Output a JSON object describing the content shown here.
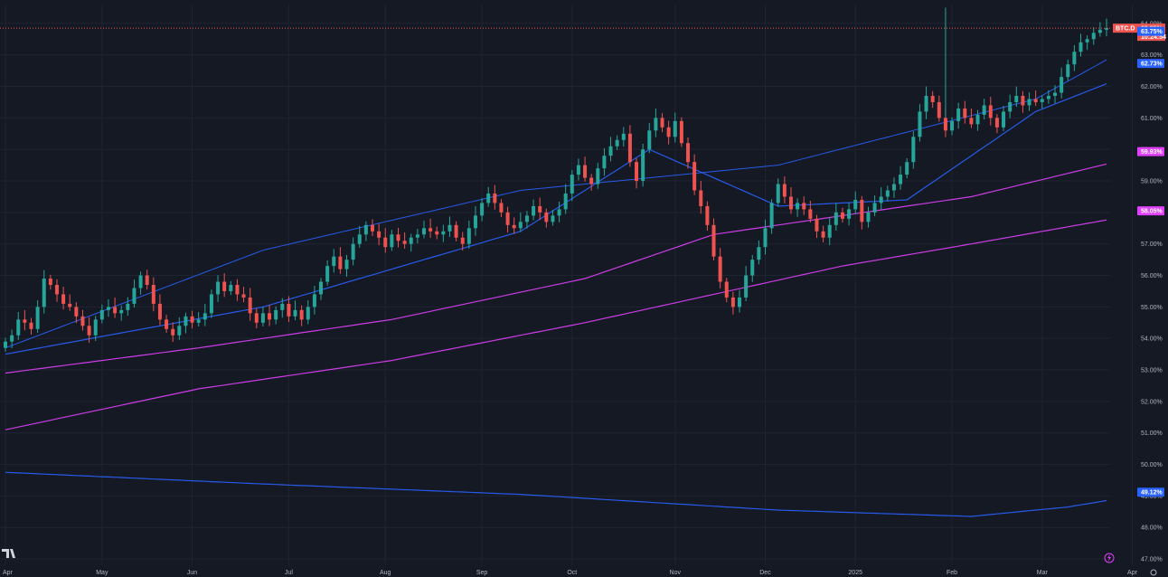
{
  "colors": {
    "background": "#151924",
    "grid": "#1f2431",
    "axis_text": "#b2b5be",
    "candle_up": "#26a69a",
    "candle_down": "#ef5350",
    "ma_fast": "#2962ff",
    "ma_mid": "#e040fb",
    "ma_slow": "#e040fb",
    "ma_long": "#2962ff",
    "price_line": "#ef5350"
  },
  "chart_data": {
    "type": "candlestick",
    "title": "",
    "symbol": "BTC.D",
    "current_price": "63.85%",
    "countdown": "10:24:54",
    "y_ticks": [
      "64.00%",
      "63.00%",
      "62.00%",
      "61.00%",
      "60.00%",
      "59.00%",
      "58.00%",
      "57.00%",
      "56.00%",
      "55.00%",
      "54.00%",
      "53.00%",
      "52.00%",
      "51.00%",
      "50.00%",
      "49.00%",
      "48.00%",
      "47.00%"
    ],
    "x_ticks": [
      "Apr",
      "May",
      "Jun",
      "Jul",
      "Aug",
      "Sep",
      "Oct",
      "Nov",
      "Dec",
      "2025",
      "Feb",
      "Mar",
      "Apr"
    ],
    "ylim": [
      46.8,
      64.6
    ],
    "grid": true,
    "closes": [
      53.9,
      54.1,
      54.6,
      54.5,
      54.3,
      55.0,
      55.9,
      55.7,
      55.4,
      55.1,
      55.0,
      54.7,
      54.4,
      54.1,
      54.6,
      54.9,
      55.0,
      54.8,
      54.9,
      55.1,
      55.6,
      56.0,
      55.7,
      55.1,
      54.6,
      54.3,
      54.1,
      54.4,
      54.7,
      54.5,
      54.6,
      54.8,
      55.4,
      55.8,
      55.5,
      55.7,
      55.4,
      55.3,
      54.8,
      54.5,
      54.8,
      54.6,
      54.9,
      55.1,
      54.7,
      54.9,
      54.6,
      55.0,
      55.4,
      55.8,
      56.3,
      56.6,
      56.2,
      56.5,
      57.0,
      57.3,
      57.6,
      57.4,
      57.2,
      56.9,
      57.3,
      57.1,
      57.0,
      57.2,
      57.3,
      57.5,
      57.4,
      57.3,
      57.4,
      57.6,
      57.2,
      57.0,
      57.5,
      57.9,
      58.3,
      58.6,
      58.3,
      58.0,
      57.6,
      57.5,
      57.7,
      57.9,
      58.2,
      58.0,
      57.7,
      57.9,
      58.1,
      58.6,
      59.2,
      59.5,
      59.1,
      58.9,
      59.4,
      59.8,
      60.1,
      60.3,
      60.5,
      59.6,
      59.0,
      60.0,
      60.6,
      61.0,
      60.7,
      60.4,
      60.9,
      60.2,
      59.6,
      58.7,
      58.2,
      57.6,
      56.6,
      55.8,
      55.3,
      55.0,
      55.3,
      56.0,
      56.5,
      56.9,
      57.5,
      58.3,
      58.9,
      58.5,
      58.1,
      58.3,
      58.1,
      57.8,
      57.4,
      57.2,
      57.6,
      58.0,
      57.8,
      58.1,
      58.4,
      57.7,
      58.0,
      58.3,
      58.5,
      58.7,
      58.9,
      59.2,
      59.6,
      60.4,
      61.2,
      61.7,
      61.5,
      61.0,
      60.6,
      60.9,
      61.3,
      61.0,
      60.8,
      61.1,
      61.4,
      61.0,
      60.7,
      61.2,
      61.5,
      61.7,
      61.4,
      61.6,
      61.5,
      61.6,
      61.7,
      61.8,
      62.3,
      62.7,
      63.1,
      63.4,
      63.5,
      63.7,
      63.8,
      63.85
    ],
    "series": [
      {
        "name": "",
        "label": "63.75%",
        "color": "#2962ff",
        "x": [
          0,
          40,
          80,
          120,
          160,
          179
        ],
        "y": [
          53.7,
          56.8,
          58.7,
          59.5,
          61.6,
          63.75
        ]
      },
      {
        "name": "",
        "label": "62.73%",
        "color": "#2962ff",
        "x": [
          0,
          40,
          80,
          100,
          120,
          140,
          160,
          179
        ],
        "y": [
          53.5,
          55.0,
          57.4,
          60.0,
          58.2,
          58.4,
          61.2,
          62.73
        ]
      },
      {
        "name": "",
        "label": "59.93%",
        "color": "#e040fb",
        "x": [
          0,
          30,
          60,
          90,
          110,
          130,
          150,
          179
        ],
        "y": [
          52.9,
          53.7,
          54.6,
          55.9,
          57.3,
          57.9,
          58.5,
          59.93
        ]
      },
      {
        "name": "",
        "label": "58.05%",
        "color": "#e040fb",
        "x": [
          0,
          30,
          60,
          90,
          110,
          130,
          150,
          179
        ],
        "y": [
          51.1,
          52.4,
          53.3,
          54.5,
          55.4,
          56.3,
          57.0,
          58.05
        ]
      },
      {
        "name": "",
        "label": "49.12%",
        "color": "#2962ff",
        "x": [
          0,
          40,
          80,
          120,
          150,
          165,
          179
        ],
        "y": [
          49.75,
          49.38,
          49.05,
          48.55,
          48.35,
          48.65,
          49.12
        ]
      }
    ]
  }
}
